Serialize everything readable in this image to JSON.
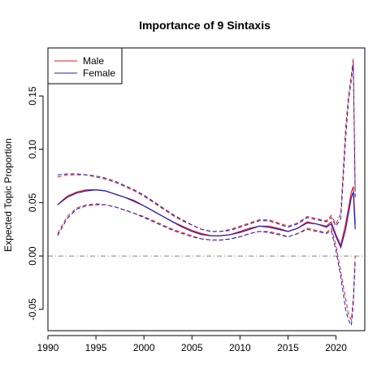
{
  "chart_data": {
    "type": "line",
    "title": "Importance of 9 Sintaxis",
    "ylabel": "Expected Topic Proportion",
    "xlabel": "",
    "xlim": [
      1990,
      2023
    ],
    "ylim": [
      -0.07,
      0.195
    ],
    "x_ticks": [
      1990,
      1995,
      2000,
      2005,
      2010,
      2015,
      2020
    ],
    "y_ticks": [
      -0.05,
      0.0,
      0.05,
      0.1,
      0.15
    ],
    "y_tick_labels": [
      "-0.05",
      "0.00",
      "0.05",
      "0.10",
      "0.15"
    ],
    "reference_line": {
      "y": 0,
      "style": "dashdot",
      "color": "#808080"
    },
    "legend": {
      "position": "top-left",
      "boxed": true
    },
    "x": [
      1991,
      1992,
      1993,
      1994,
      1995,
      1996,
      1997,
      1998,
      1999,
      2000,
      2001,
      2002,
      2003,
      2004,
      2005,
      2006,
      2007,
      2008,
      2009,
      2010,
      2011,
      2012,
      2013,
      2014,
      2015,
      2016,
      2017,
      2018,
      2019,
      2019.5,
      2020,
      2020.5,
      2021,
      2021.3,
      2021.6,
      2021.8,
      2022
    ],
    "series": [
      {
        "name": "Male",
        "color": "#e41a1c",
        "mean": [
          0.048,
          0.056,
          0.06,
          0.062,
          0.062,
          0.061,
          0.058,
          0.055,
          0.052,
          0.047,
          0.042,
          0.037,
          0.032,
          0.028,
          0.024,
          0.021,
          0.019,
          0.019,
          0.02,
          0.023,
          0.026,
          0.028,
          0.028,
          0.026,
          0.023,
          0.026,
          0.032,
          0.03,
          0.028,
          0.032,
          0.02,
          0.01,
          0.03,
          0.045,
          0.06,
          0.065,
          0.03
        ],
        "upper": [
          0.074,
          0.076,
          0.076,
          0.076,
          0.074,
          0.072,
          0.069,
          0.065,
          0.061,
          0.056,
          0.05,
          0.044,
          0.038,
          0.033,
          0.029,
          0.025,
          0.023,
          0.023,
          0.025,
          0.028,
          0.031,
          0.034,
          0.034,
          0.031,
          0.028,
          0.031,
          0.037,
          0.035,
          0.033,
          0.038,
          0.03,
          0.04,
          0.12,
          0.15,
          0.17,
          0.185,
          0.06
        ],
        "lower": [
          0.021,
          0.037,
          0.045,
          0.048,
          0.049,
          0.048,
          0.046,
          0.043,
          0.04,
          0.037,
          0.033,
          0.029,
          0.025,
          0.022,
          0.019,
          0.016,
          0.015,
          0.015,
          0.016,
          0.018,
          0.021,
          0.023,
          0.023,
          0.021,
          0.018,
          0.021,
          0.026,
          0.024,
          0.022,
          0.026,
          0.01,
          -0.015,
          -0.04,
          -0.055,
          -0.06,
          -0.04,
          0.0
        ]
      },
      {
        "name": "Female",
        "color": "#1c1cbf",
        "mean": [
          0.048,
          0.055,
          0.059,
          0.061,
          0.062,
          0.061,
          0.058,
          0.055,
          0.051,
          0.047,
          0.042,
          0.037,
          0.032,
          0.027,
          0.023,
          0.02,
          0.019,
          0.019,
          0.02,
          0.022,
          0.025,
          0.028,
          0.027,
          0.025,
          0.023,
          0.026,
          0.031,
          0.03,
          0.027,
          0.03,
          0.018,
          0.008,
          0.025,
          0.04,
          0.055,
          0.06,
          0.025
        ],
        "upper": [
          0.076,
          0.077,
          0.077,
          0.076,
          0.075,
          0.073,
          0.07,
          0.066,
          0.062,
          0.057,
          0.051,
          0.045,
          0.039,
          0.034,
          0.029,
          0.025,
          0.023,
          0.023,
          0.024,
          0.027,
          0.03,
          0.033,
          0.033,
          0.03,
          0.027,
          0.03,
          0.036,
          0.034,
          0.032,
          0.036,
          0.028,
          0.035,
          0.11,
          0.145,
          0.165,
          0.18,
          0.055
        ],
        "lower": [
          0.019,
          0.035,
          0.044,
          0.047,
          0.048,
          0.048,
          0.046,
          0.043,
          0.04,
          0.036,
          0.032,
          0.028,
          0.024,
          0.021,
          0.018,
          0.016,
          0.015,
          0.015,
          0.016,
          0.018,
          0.021,
          0.023,
          0.022,
          0.02,
          0.018,
          0.021,
          0.025,
          0.023,
          0.021,
          0.024,
          0.005,
          -0.02,
          -0.05,
          -0.06,
          -0.065,
          -0.045,
          -0.005
        ]
      }
    ]
  }
}
